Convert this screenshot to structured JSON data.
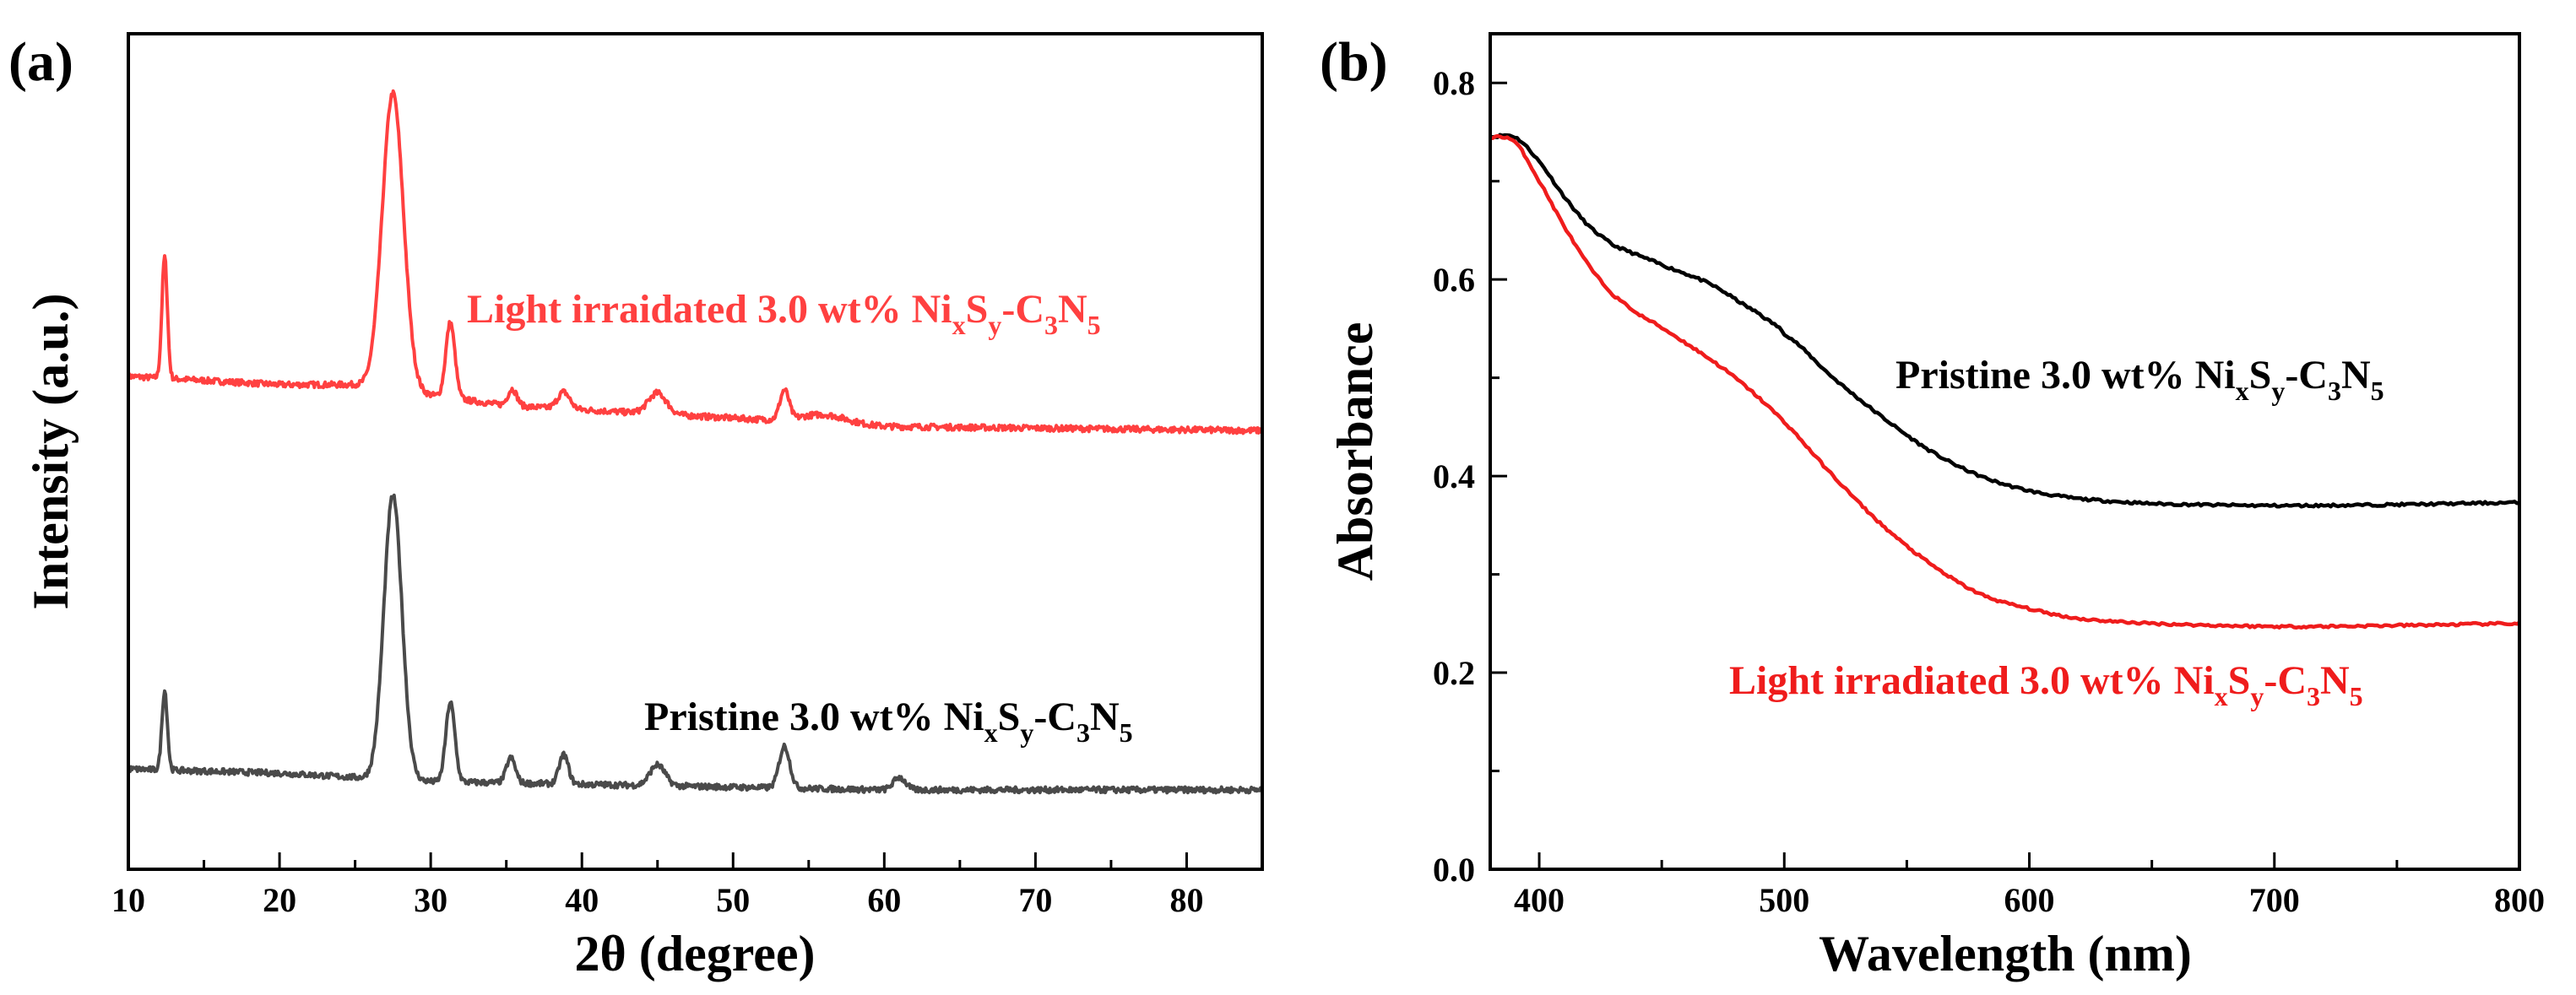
{
  "colors": {
    "black": "#000000",
    "gray": "#4a4a4a",
    "red": "#ef1c1c",
    "bright_red": "#ff4040"
  },
  "chart_data": [
    {
      "type": "line",
      "panel_label": "(a)",
      "xlabel": "2θ (degree)",
      "ylabel": "Intensity (a.u.)",
      "xlim": [
        10,
        85
      ],
      "xticks": [
        10,
        20,
        30,
        40,
        50,
        60,
        70,
        80
      ],
      "yticks_shown": false,
      "series": [
        {
          "name": "Light irraidated 3.0 wt% NixSy-C3N5",
          "label_parts": [
            "Light irraidated 3.0 wt% Ni",
            "x",
            "S",
            "y",
            "-C",
            "3",
            "N",
            "5"
          ],
          "color": "#ff4040",
          "baseline": [
            [
              10,
              0.59
            ],
            [
              20,
              0.58
            ],
            [
              25,
              0.58
            ],
            [
              35,
              0.555
            ],
            [
              45,
              0.545
            ],
            [
              60,
              0.53
            ],
            [
              85,
              0.525
            ]
          ],
          "peaks": [
            {
              "x": 12.4,
              "h": 0.145,
              "w": 0.18
            },
            {
              "x": 27.5,
              "h": 0.355,
              "w": 0.7
            },
            {
              "x": 31.3,
              "h": 0.09,
              "w": 0.3
            },
            {
              "x": 35.4,
              "h": 0.02,
              "w": 0.3
            },
            {
              "x": 38.8,
              "h": 0.02,
              "w": 0.4
            },
            {
              "x": 45.0,
              "h": 0.025,
              "w": 0.6
            },
            {
              "x": 53.4,
              "h": 0.035,
              "w": 0.3
            },
            {
              "x": 56.0,
              "h": 0.01,
              "w": 1.5
            }
          ]
        },
        {
          "name": "Pristine 3.0 wt% NixSy-C3N5",
          "label_parts": [
            "Pristine 3.0 wt% Ni",
            "x",
            "S",
            "y",
            "-C",
            "3",
            "N",
            "5"
          ],
          "color": "#4a4a4a",
          "baseline": [
            [
              10,
              0.12
            ],
            [
              20,
              0.115
            ],
            [
              30,
              0.105
            ],
            [
              45,
              0.1
            ],
            [
              60,
              0.095
            ],
            [
              85,
              0.095
            ]
          ],
          "peaks": [
            {
              "x": 12.4,
              "h": 0.095,
              "w": 0.18
            },
            {
              "x": 27.5,
              "h": 0.34,
              "w": 0.6
            },
            {
              "x": 31.3,
              "h": 0.095,
              "w": 0.3
            },
            {
              "x": 35.3,
              "h": 0.03,
              "w": 0.3
            },
            {
              "x": 38.8,
              "h": 0.035,
              "w": 0.3
            },
            {
              "x": 45.0,
              "h": 0.025,
              "w": 0.5
            },
            {
              "x": 53.4,
              "h": 0.05,
              "w": 0.35
            },
            {
              "x": 61.0,
              "h": 0.015,
              "w": 0.4
            }
          ]
        }
      ]
    },
    {
      "type": "line",
      "panel_label": "(b)",
      "xlabel": "Wavelength (nm)",
      "ylabel": "Absorbance",
      "xlim": [
        380,
        800
      ],
      "ylim": [
        0.0,
        0.85
      ],
      "xticks": [
        400,
        500,
        600,
        700,
        800
      ],
      "yticks": [
        0.0,
        0.2,
        0.4,
        0.6,
        0.8
      ],
      "ytick_labels": [
        "0.0",
        "0.2",
        "0.4",
        "0.6",
        "0.8"
      ],
      "series": [
        {
          "name": "Pristine 3.0 wt% NixSy-C3N5",
          "label_parts": [
            "Pristine 3.0 wt% Ni",
            "x",
            "S",
            "y",
            "-C",
            "3",
            "N",
            "5"
          ],
          "color": "#000000",
          "points": [
            [
              380,
              0.745
            ],
            [
              390,
              0.745
            ],
            [
              400,
              0.72
            ],
            [
              410,
              0.685
            ],
            [
              420,
              0.655
            ],
            [
              430,
              0.635
            ],
            [
              450,
              0.615
            ],
            [
              470,
              0.595
            ],
            [
              490,
              0.565
            ],
            [
              500,
              0.545
            ],
            [
              520,
              0.5
            ],
            [
              540,
              0.46
            ],
            [
              560,
              0.425
            ],
            [
              580,
              0.4
            ],
            [
              600,
              0.385
            ],
            [
              620,
              0.377
            ],
            [
              650,
              0.372
            ],
            [
              700,
              0.37
            ],
            [
              750,
              0.371
            ],
            [
              800,
              0.373
            ]
          ]
        },
        {
          "name": "Light irradiated 3.0 wt% NixSy-C3N5",
          "label_parts": [
            "Light irradiated 3.0 wt% Ni",
            "x",
            "S",
            "y",
            "-C",
            "3",
            "N",
            "5"
          ],
          "color": "#ef1c1c",
          "points": [
            [
              380,
              0.745
            ],
            [
              390,
              0.74
            ],
            [
              400,
              0.7
            ],
            [
              410,
              0.655
            ],
            [
              420,
              0.615
            ],
            [
              430,
              0.585
            ],
            [
              440,
              0.565
            ],
            [
              460,
              0.535
            ],
            [
              480,
              0.5
            ],
            [
              500,
              0.455
            ],
            [
              520,
              0.4
            ],
            [
              540,
              0.35
            ],
            [
              560,
              0.31
            ],
            [
              580,
              0.28
            ],
            [
              600,
              0.265
            ],
            [
              620,
              0.255
            ],
            [
              650,
              0.25
            ],
            [
              700,
              0.247
            ],
            [
              750,
              0.248
            ],
            [
              800,
              0.25
            ]
          ]
        }
      ]
    }
  ]
}
